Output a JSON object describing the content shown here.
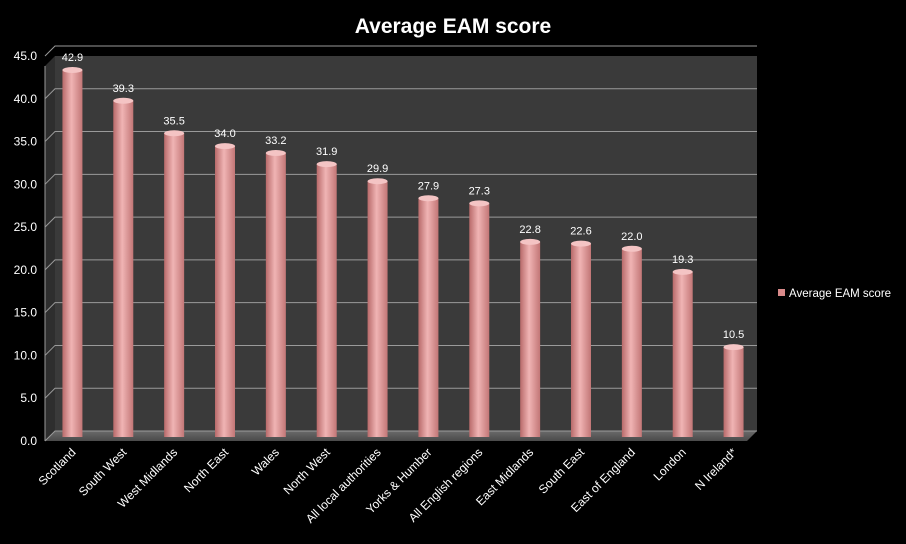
{
  "chart_data": {
    "type": "bar",
    "title": "Average EAM score",
    "xlabel": "",
    "ylabel": "",
    "ylim": [
      0,
      45
    ],
    "yticks": [
      "0.0",
      "5.0",
      "10.0",
      "15.0",
      "20.0",
      "25.0",
      "30.0",
      "35.0",
      "40.0",
      "45.0"
    ],
    "grid": true,
    "legend_position": "right",
    "categories": [
      "Scotland",
      "South West",
      "West Midlands",
      "North East",
      "Wales",
      "North West",
      "All local authorities",
      "Yorks & Humber",
      "All English regions",
      "East Midlands",
      "South East",
      "East of England",
      "London",
      "N Ireland*"
    ],
    "series": [
      {
        "name": "Average EAM score",
        "values": [
          42.9,
          39.3,
          35.5,
          34.0,
          33.2,
          31.9,
          29.9,
          27.9,
          27.3,
          22.8,
          22.6,
          22.0,
          19.3,
          10.5
        ],
        "data_labels": [
          "42.9",
          "39.3",
          "35.5",
          "34.0",
          "33.2",
          "31.9",
          "29.9",
          "27.9",
          "27.3",
          "22.8",
          "22.6",
          "22.0",
          "19.3",
          "10.5"
        ],
        "color": "#d98a8a"
      }
    ],
    "plot_background": "#3a3a3a",
    "gridline_color": "#9a9a9a"
  }
}
